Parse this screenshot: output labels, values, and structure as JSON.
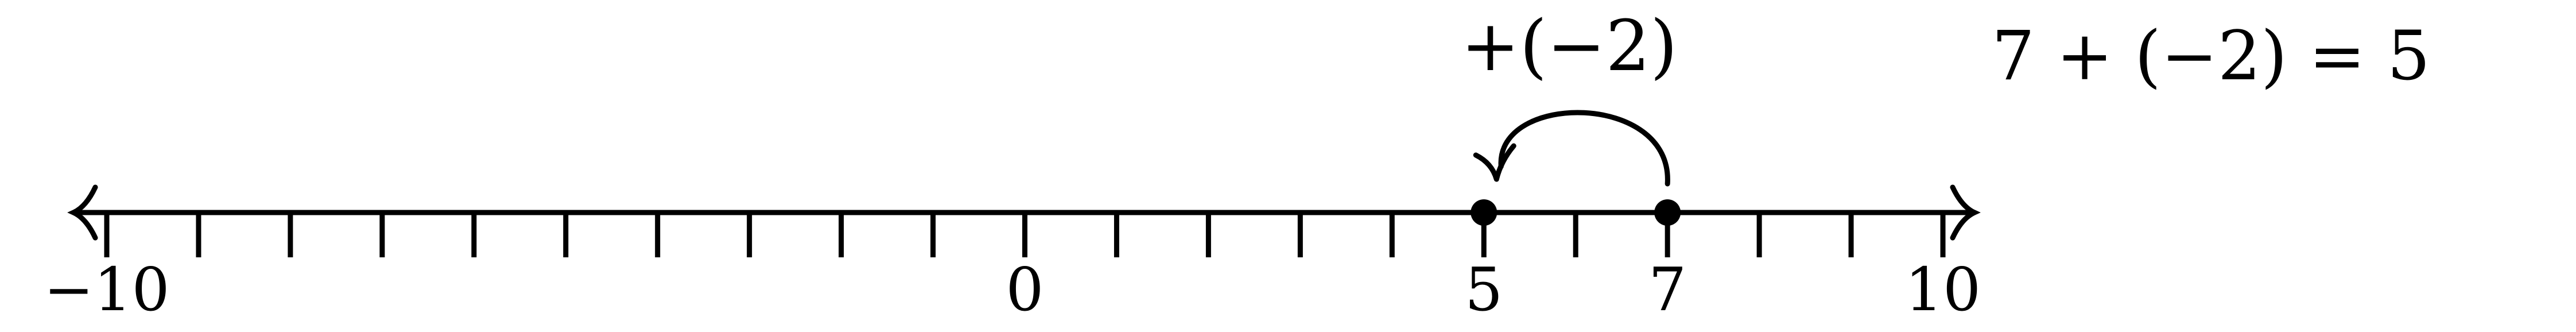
{
  "number_line": {
    "min": -10,
    "max": 10,
    "step": 1,
    "tick_labels": [
      {
        "value": -10,
        "text": "−10"
      },
      {
        "value": 0,
        "text": "0"
      },
      {
        "value": 5,
        "text": "5"
      },
      {
        "value": 7,
        "text": "7"
      },
      {
        "value": 10,
        "text": "10"
      }
    ],
    "arrows": "both"
  },
  "points": [
    {
      "value": 5
    },
    {
      "value": 7
    }
  ],
  "jump": {
    "from": 7,
    "to": 5,
    "label": "+(−2)"
  },
  "equation": "7 + (−2) = 5",
  "colors": {
    "ink": "#000000",
    "background": "#ffffff"
  }
}
